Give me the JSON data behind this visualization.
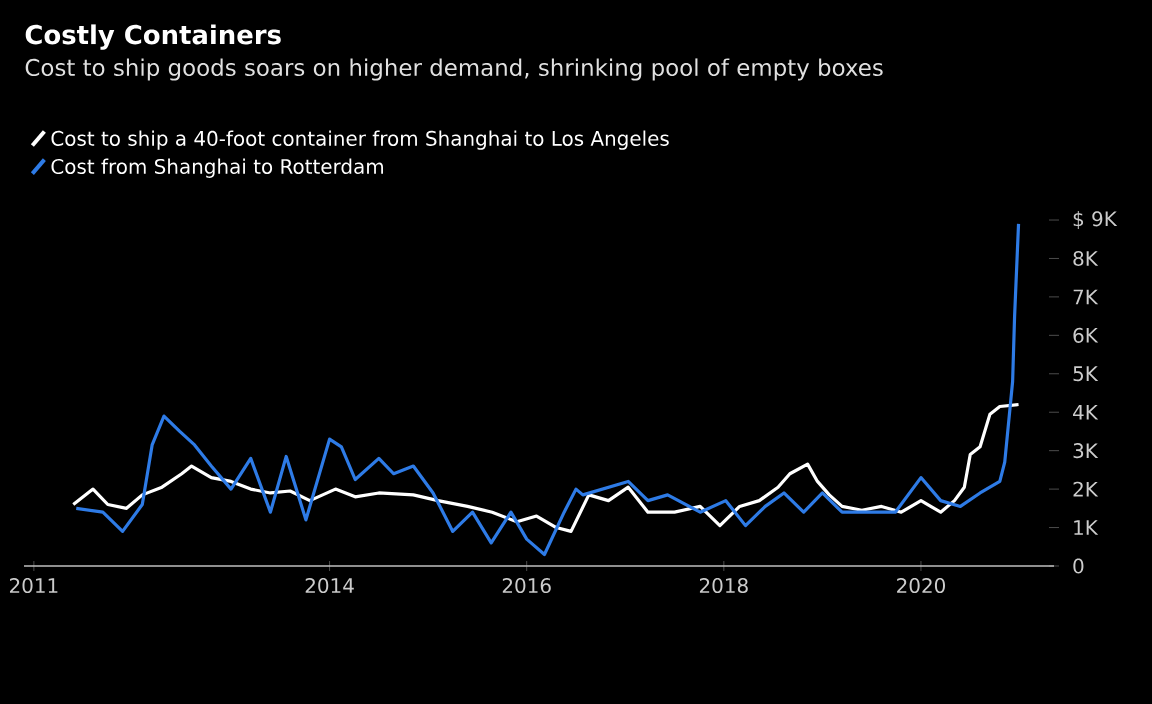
{
  "chart_data": {
    "type": "line",
    "title": "Costly Containers",
    "subtitle": "Cost to ship goods soars on higher demand, shrinking pool of empty boxes",
    "xlim": [
      2010.9,
      2021.35
    ],
    "xticks": [
      2011,
      2014,
      2016,
      2018,
      2020
    ],
    "ylim": [
      0,
      9000
    ],
    "yticks": [
      0,
      {
        "value": 1000,
        "label": "1K"
      },
      {
        "value": 2000,
        "label": "2K"
      },
      {
        "value": 3000,
        "label": "3K"
      },
      {
        "value": 4000,
        "label": "4K"
      },
      {
        "value": 5000,
        "label": "5K"
      },
      {
        "value": 6000,
        "label": "6K"
      },
      {
        "value": 7000,
        "label": "7K"
      },
      {
        "value": 8000,
        "label": "8K"
      },
      {
        "value": 9000,
        "label": "$ 9K"
      }
    ],
    "legend": "top left",
    "line_style": "solid",
    "series": [
      {
        "name": "Cost to ship a 40-foot container from Shanghai to Los Angeles",
        "color": "#ffffff",
        "x": [
          2011.4,
          2011.6,
          2011.75,
          2011.94,
          2012.1,
          2012.3,
          2012.5,
          2012.6,
          2012.8,
          2013.0,
          2013.2,
          2013.4,
          2013.6,
          2013.8,
          2014.06,
          2014.26,
          2014.5,
          2014.85,
          2015.1,
          2015.4,
          2015.65,
          2015.9,
          2016.1,
          2016.3,
          2016.45,
          2016.63,
          2016.83,
          2017.03,
          2017.23,
          2017.5,
          2017.76,
          2017.96,
          2018.16,
          2018.36,
          2018.55,
          2018.67,
          2018.85,
          2018.95,
          2019.07,
          2019.2,
          2019.4,
          2019.6,
          2019.8,
          2020.0,
          2020.2,
          2020.34,
          2020.44,
          2020.5,
          2020.6,
          2020.7,
          2020.8,
          2020.99
        ],
        "values": [
          1600,
          2000,
          1600,
          1500,
          1850,
          2050,
          2400,
          2600,
          2300,
          2200,
          2000,
          1900,
          1950,
          1700,
          2000,
          1800,
          1900,
          1850,
          1700,
          1550,
          1400,
          1150,
          1300,
          1000,
          900,
          1850,
          1700,
          2050,
          1400,
          1400,
          1550,
          1050,
          1550,
          1700,
          2050,
          2400,
          2650,
          2200,
          1850,
          1550,
          1450,
          1550,
          1400,
          1700,
          1400,
          1700,
          2050,
          2900,
          3100,
          3950,
          4150,
          4200
        ]
      },
      {
        "name": "Cost from Shanghai to Rotterdam",
        "color": "#2e7be6",
        "x": [
          2011.43,
          2011.7,
          2011.9,
          2012.1,
          2012.2,
          2012.32,
          2012.48,
          2012.63,
          2012.8,
          2013.0,
          2013.2,
          2013.4,
          2013.56,
          2013.76,
          2014.0,
          2014.12,
          2014.26,
          2014.5,
          2014.65,
          2014.85,
          2015.05,
          2015.25,
          2015.45,
          2015.64,
          2015.84,
          2016.0,
          2016.18,
          2016.38,
          2016.5,
          2016.57,
          2017.03,
          2017.23,
          2017.43,
          2017.76,
          2018.02,
          2018.22,
          2018.42,
          2018.61,
          2018.81,
          2019.0,
          2019.2,
          2019.47,
          2019.74,
          2020.0,
          2020.2,
          2020.4,
          2020.6,
          2020.8,
          2020.85,
          2020.93,
          2020.95,
          2020.99
        ],
        "values": [
          1500,
          1400,
          900,
          1600,
          3150,
          3900,
          3500,
          3150,
          2600,
          2000,
          2800,
          1400,
          2850,
          1200,
          3300,
          3100,
          2250,
          2800,
          2400,
          2600,
          1900,
          900,
          1400,
          600,
          1400,
          700,
          300,
          1400,
          2000,
          1850,
          2200,
          1700,
          1850,
          1400,
          1700,
          1050,
          1550,
          1900,
          1400,
          1900,
          1400,
          1400,
          1400,
          2300,
          1700,
          1550,
          1900,
          2200,
          2700,
          4800,
          6500,
          8900
        ]
      }
    ]
  }
}
